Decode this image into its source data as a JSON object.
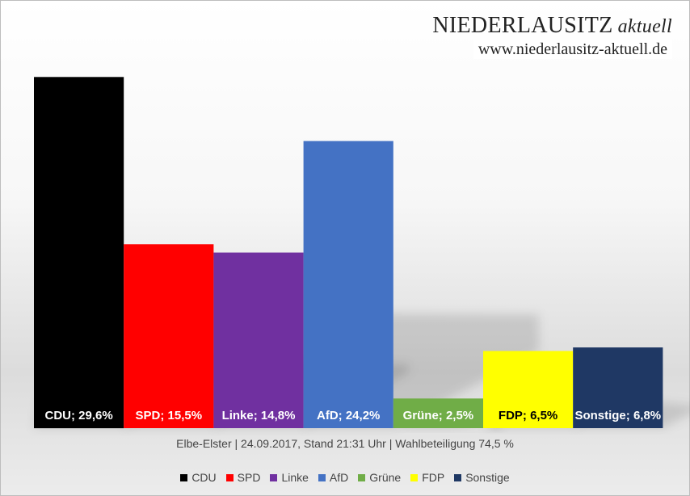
{
  "branding": {
    "name": "NIEDERLAUSITZ",
    "name_suffix": "aktuell",
    "url": "www.niederlausitz-aktuell.de"
  },
  "chart_data": {
    "type": "bar",
    "title": "",
    "xlabel": "",
    "ylabel": "",
    "ylim": [
      0,
      32
    ],
    "grid": false,
    "legend_position": "bottom",
    "caption": "Elbe-Elster | 24.09.2017, Stand 21:31 Uhr | Wahlbeteiligung 74,5 %",
    "categories": [
      "CDU",
      "SPD",
      "Linke",
      "AfD",
      "Grüne",
      "FDP",
      "Sonstige"
    ],
    "values": [
      29.6,
      15.5,
      14.8,
      24.2,
      2.5,
      6.5,
      6.8
    ],
    "data_labels": [
      "CDU; 29,6%",
      "SPD; 15,5%",
      "Linke; 14,8%",
      "AfD; 24,2%",
      "Grüne; 2,5%",
      "FDP; 6,5%",
      "Sonstige; 6,8%"
    ],
    "colors": [
      "#000000",
      "#ff0000",
      "#7030a0",
      "#4472c4",
      "#70ad47",
      "#ffff00",
      "#1f3864"
    ],
    "label_colors": [
      "#ffffff",
      "#ffffff",
      "#ffffff",
      "#ffffff",
      "#ffffff",
      "#000000",
      "#ffffff"
    ],
    "legend": [
      "CDU",
      "SPD",
      "Linke",
      "AfD",
      "Grüne",
      "FDP",
      "Sonstige"
    ]
  }
}
